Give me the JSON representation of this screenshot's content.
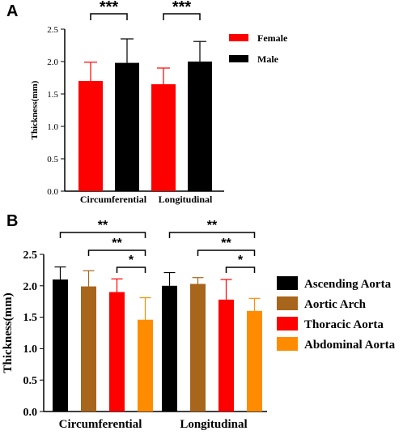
{
  "chart_data": [
    {
      "type": "bar",
      "panel_label": "A",
      "ylabel": "Thickness(mm)",
      "ylim": [
        0,
        2.5
      ],
      "yticks": [
        "0.0",
        "0.5",
        "1.0",
        "1.5",
        "2.0",
        "2.5"
      ],
      "categories": [
        "Circumferential",
        "Longitudinal"
      ],
      "legend_position": "top-right",
      "series": [
        {
          "name": "Female",
          "color": "#ff0000",
          "values": [
            1.7,
            1.65
          ],
          "errors": [
            0.29,
            0.25
          ]
        },
        {
          "name": "Male",
          "color": "#000000",
          "values": [
            1.98,
            2.0
          ],
          "errors": [
            0.37,
            0.31
          ]
        }
      ],
      "significance": [
        {
          "category": "Circumferential",
          "label": "***"
        },
        {
          "category": "Longitudinal",
          "label": "***"
        }
      ]
    },
    {
      "type": "bar",
      "panel_label": "B",
      "ylabel": "Thickness(mm)",
      "ylim": [
        0,
        2.5
      ],
      "yticks": [
        "0.0",
        "0.5",
        "1.0",
        "1.5",
        "2.0",
        "2.5"
      ],
      "categories": [
        "Circumferential",
        "Longitudinal"
      ],
      "legend_position": "right",
      "series": [
        {
          "name": "Ascending Aorta",
          "color": "#000000",
          "values": [
            2.1,
            2.0
          ],
          "errors": [
            0.2,
            0.21
          ]
        },
        {
          "name": "Aortic Arch",
          "color": "#a8651c",
          "values": [
            1.99,
            2.03
          ],
          "errors": [
            0.25,
            0.1
          ]
        },
        {
          "name": "Thoracic Aorta",
          "color": "#ff0000",
          "values": [
            1.9,
            1.78
          ],
          "errors": [
            0.21,
            0.32
          ]
        },
        {
          "name": "Abdominal Aorta",
          "color": "#ff8c00",
          "values": [
            1.46,
            1.6
          ],
          "errors": [
            0.35,
            0.2
          ]
        }
      ],
      "significance": [
        {
          "category": "Circumferential",
          "from": 0,
          "to": 3,
          "label": "**"
        },
        {
          "category": "Circumferential",
          "from": 1,
          "to": 3,
          "label": "**"
        },
        {
          "category": "Circumferential",
          "from": 2,
          "to": 3,
          "label": "*"
        },
        {
          "category": "Longitudinal",
          "from": 0,
          "to": 3,
          "label": "**"
        },
        {
          "category": "Longitudinal",
          "from": 1,
          "to": 3,
          "label": "**"
        },
        {
          "category": "Longitudinal",
          "from": 2,
          "to": 3,
          "label": "*"
        }
      ]
    }
  ]
}
